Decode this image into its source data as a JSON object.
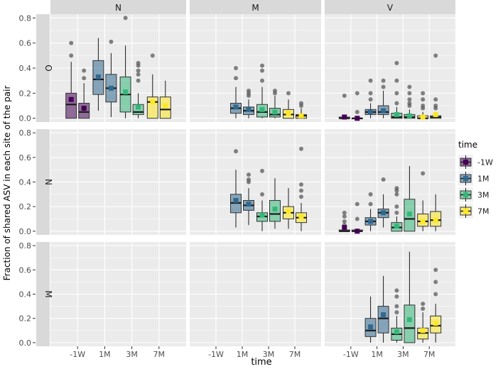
{
  "chart_data": {
    "type": "boxplot-faceted",
    "xlabel": "time",
    "ylabel": "Fraction of shared ASV in each site of the pair",
    "col_facets": [
      "N",
      "M",
      "V"
    ],
    "row_facets": [
      "O",
      "N",
      "M"
    ],
    "categories": [
      "-1W",
      "1M",
      "3M",
      "7M"
    ],
    "yticks": [
      0.0,
      0.2,
      0.4,
      0.6,
      0.8
    ],
    "yticklabels": [
      "0.0",
      "0.2",
      "0.4",
      "0.6",
      "0.8"
    ],
    "ylim": [
      -0.03,
      0.83
    ],
    "legend": {
      "title": "time",
      "position": "right",
      "entries": [
        {
          "label": "-1W",
          "color": "#440154"
        },
        {
          "label": "1M",
          "color": "#31688e"
        },
        {
          "label": "3M",
          "color": "#35b779"
        },
        {
          "label": "7M",
          "color": "#fde725"
        }
      ]
    },
    "panels": [
      {
        "row": "O",
        "col": "N",
        "boxes": [
          {
            "time": "-1W",
            "dodge": -1,
            "q1": 0.0,
            "median": 0.11,
            "q3": 0.2,
            "lo": 0.0,
            "hi": 0.45,
            "mean": 0.15,
            "outliers": [
              0.5,
              0.6
            ]
          },
          {
            "time": "-1W",
            "dodge": 1,
            "q1": 0.0,
            "median": 0.05,
            "q3": 0.12,
            "lo": 0.0,
            "hi": 0.28,
            "mean": 0.08,
            "outliers": [
              0.32,
              0.38
            ]
          },
          {
            "time": "1M",
            "dodge": -1,
            "q1": 0.19,
            "median": 0.31,
            "q3": 0.46,
            "lo": 0.06,
            "hi": 0.64,
            "mean": 0.33,
            "outliers": []
          },
          {
            "time": "1M",
            "dodge": 1,
            "q1": 0.13,
            "median": 0.24,
            "q3": 0.35,
            "lo": 0.01,
            "hi": 0.52,
            "mean": 0.24,
            "outliers": [
              0.61
            ]
          },
          {
            "time": "3M",
            "dodge": -1,
            "q1": 0.05,
            "median": 0.19,
            "q3": 0.33,
            "lo": 0.0,
            "hi": 0.58,
            "mean": 0.21,
            "outliers": [
              0.8
            ]
          },
          {
            "time": "3M",
            "dodge": 1,
            "q1": 0.03,
            "median": 0.05,
            "q3": 0.11,
            "lo": 0.0,
            "hi": 0.2,
            "mean": 0.09,
            "outliers": [
              0.3,
              0.35,
              0.38,
              0.42,
              0.44
            ]
          },
          {
            "time": "7M",
            "dodge": -1,
            "q1": 0.0,
            "median": 0.13,
            "q3": 0.17,
            "lo": 0.0,
            "hi": 0.35,
            "mean": 0.13,
            "outliers": [
              0.5
            ]
          },
          {
            "time": "7M",
            "dodge": 1,
            "q1": 0.0,
            "median": 0.07,
            "q3": 0.17,
            "lo": 0.0,
            "hi": 0.3,
            "mean": 0.1,
            "outliers": []
          }
        ]
      },
      {
        "row": "O",
        "col": "M",
        "boxes": [
          {
            "time": "1M",
            "dodge": -1,
            "q1": 0.04,
            "median": 0.08,
            "q3": 0.12,
            "lo": 0.0,
            "hi": 0.25,
            "mean": 0.09,
            "outliers": [
              0.32,
              0.4
            ]
          },
          {
            "time": "1M",
            "dodge": 1,
            "q1": 0.03,
            "median": 0.06,
            "q3": 0.09,
            "lo": 0.0,
            "hi": 0.15,
            "mean": 0.07,
            "outliers": [
              0.18,
              0.2,
              0.22
            ]
          },
          {
            "time": "3M",
            "dodge": -1,
            "q1": 0.01,
            "median": 0.05,
            "q3": 0.11,
            "lo": 0.0,
            "hi": 0.25,
            "mean": 0.07,
            "outliers": [
              0.3,
              0.38,
              0.42
            ]
          },
          {
            "time": "3M",
            "dodge": 1,
            "q1": 0.01,
            "median": 0.03,
            "q3": 0.08,
            "lo": 0.0,
            "hi": 0.18,
            "mean": 0.05,
            "outliers": [
              0.2,
              0.22
            ]
          },
          {
            "time": "7M",
            "dodge": -1,
            "q1": 0.0,
            "median": 0.03,
            "q3": 0.07,
            "lo": 0.0,
            "hi": 0.15,
            "mean": 0.04,
            "outliers": [
              0.2
            ]
          },
          {
            "time": "7M",
            "dodge": 1,
            "q1": 0.0,
            "median": 0.02,
            "q3": 0.03,
            "lo": 0.0,
            "hi": 0.08,
            "mean": 0.02,
            "outliers": [
              0.1,
              0.12
            ]
          }
        ]
      },
      {
        "row": "O",
        "col": "V",
        "boxes": [
          {
            "time": "-1W",
            "dodge": -1,
            "q1": 0.0,
            "median": 0.0,
            "q3": 0.01,
            "lo": 0.0,
            "hi": 0.02,
            "mean": 0.01,
            "outliers": [
              0.18
            ]
          },
          {
            "time": "-1W",
            "dodge": 1,
            "q1": 0.0,
            "median": 0.0,
            "q3": 0.0,
            "lo": 0.0,
            "hi": 0.01,
            "mean": 0.0,
            "outliers": [
              0.05,
              0.2
            ]
          },
          {
            "time": "1M",
            "dodge": -1,
            "q1": 0.03,
            "median": 0.05,
            "q3": 0.07,
            "lo": 0.0,
            "hi": 0.12,
            "mean": 0.05,
            "outliers": [
              0.15,
              0.2,
              0.3
            ]
          },
          {
            "time": "1M",
            "dodge": 1,
            "q1": 0.03,
            "median": 0.05,
            "q3": 0.1,
            "lo": 0.0,
            "hi": 0.22,
            "mean": 0.06,
            "outliers": [
              0.25,
              0.3
            ]
          },
          {
            "time": "3M",
            "dodge": -1,
            "q1": 0.0,
            "median": 0.01,
            "q3": 0.04,
            "lo": 0.0,
            "hi": 0.09,
            "mean": 0.03,
            "outliers": [
              0.12,
              0.2,
              0.3,
              0.44
            ]
          },
          {
            "time": "3M",
            "dodge": 1,
            "q1": 0.0,
            "median": 0.01,
            "q3": 0.03,
            "lo": 0.0,
            "hi": 0.07,
            "mean": 0.02,
            "outliers": [
              0.1,
              0.12,
              0.15,
              0.2,
              0.25
            ]
          },
          {
            "time": "7M",
            "dodge": -1,
            "q1": 0.0,
            "median": 0.0,
            "q3": 0.02,
            "lo": 0.0,
            "hi": 0.05,
            "mean": 0.01,
            "outliers": [
              0.08,
              0.1,
              0.15,
              0.2
            ]
          },
          {
            "time": "7M",
            "dodge": 1,
            "q1": 0.0,
            "median": 0.01,
            "q3": 0.02,
            "lo": 0.0,
            "hi": 0.05,
            "mean": 0.03,
            "outliers": [
              0.08,
              0.1,
              0.15,
              0.5
            ]
          }
        ]
      },
      {
        "row": "N",
        "col": "M",
        "boxes": [
          {
            "time": "1M",
            "dodge": -1,
            "q1": 0.15,
            "median": 0.23,
            "q3": 0.3,
            "lo": 0.03,
            "hi": 0.5,
            "mean": 0.25,
            "outliers": [
              0.65
            ]
          },
          {
            "time": "1M",
            "dodge": 1,
            "q1": 0.17,
            "median": 0.21,
            "q3": 0.25,
            "lo": 0.05,
            "hi": 0.35,
            "mean": 0.22,
            "outliers": [
              0.4,
              0.42,
              0.46
            ]
          },
          {
            "time": "3M",
            "dodge": -1,
            "q1": 0.08,
            "median": 0.12,
            "q3": 0.15,
            "lo": 0.0,
            "hi": 0.25,
            "mean": 0.13,
            "outliers": [
              0.3,
              0.49
            ]
          },
          {
            "time": "3M",
            "dodge": 1,
            "q1": 0.08,
            "median": 0.14,
            "q3": 0.25,
            "lo": 0.02,
            "hi": 0.43,
            "mean": 0.18,
            "outliers": []
          },
          {
            "time": "7M",
            "dodge": -1,
            "q1": 0.1,
            "median": 0.15,
            "q3": 0.2,
            "lo": 0.02,
            "hi": 0.35,
            "mean": 0.16,
            "outliers": []
          },
          {
            "time": "7M",
            "dodge": 1,
            "q1": 0.07,
            "median": 0.11,
            "q3": 0.15,
            "lo": 0.0,
            "hi": 0.23,
            "mean": 0.12,
            "outliers": [
              0.28,
              0.33,
              0.38,
              0.67
            ]
          }
        ]
      },
      {
        "row": "N",
        "col": "V",
        "boxes": [
          {
            "time": "-1W",
            "dodge": -1,
            "q1": 0.0,
            "median": 0.0,
            "q3": 0.01,
            "lo": 0.0,
            "hi": 0.03,
            "mean": 0.03,
            "outliers": [
              0.05,
              0.08,
              0.12,
              0.15
            ]
          },
          {
            "time": "-1W",
            "dodge": 1,
            "q1": 0.0,
            "median": 0.0,
            "q3": 0.01,
            "lo": 0.0,
            "hi": 0.02,
            "mean": 0.0,
            "outliers": [
              0.1,
              0.22
            ]
          },
          {
            "time": "1M",
            "dodge": -1,
            "q1": 0.05,
            "median": 0.08,
            "q3": 0.11,
            "lo": 0.0,
            "hi": 0.18,
            "mean": 0.08,
            "outliers": [
              0.22,
              0.3
            ]
          },
          {
            "time": "1M",
            "dodge": 1,
            "q1": 0.11,
            "median": 0.15,
            "q3": 0.18,
            "lo": 0.03,
            "hi": 0.3,
            "mean": 0.15,
            "outliers": [
              0.42
            ]
          },
          {
            "time": "3M",
            "dodge": -1,
            "q1": 0.0,
            "median": 0.03,
            "q3": 0.07,
            "lo": 0.0,
            "hi": 0.12,
            "mean": 0.04,
            "outliers": [
              0.15,
              0.2,
              0.3,
              0.33,
              0.35
            ]
          },
          {
            "time": "3M",
            "dodge": 1,
            "q1": 0.0,
            "median": 0.1,
            "q3": 0.26,
            "lo": 0.0,
            "hi": 0.53,
            "mean": 0.14,
            "outliers": []
          },
          {
            "time": "7M",
            "dodge": -1,
            "q1": 0.04,
            "median": 0.08,
            "q3": 0.14,
            "lo": 0.0,
            "hi": 0.25,
            "mean": 0.08,
            "outliers": [
              0.47
            ]
          },
          {
            "time": "7M",
            "dodge": 1,
            "q1": 0.04,
            "median": 0.09,
            "q3": 0.16,
            "lo": 0.0,
            "hi": 0.3,
            "mean": 0.09,
            "outliers": []
          }
        ]
      },
      {
        "row": "M",
        "col": "V",
        "boxes": [
          {
            "time": "1M",
            "dodge": -1,
            "q1": 0.05,
            "median": 0.1,
            "q3": 0.2,
            "lo": 0.0,
            "hi": 0.38,
            "mean": 0.13,
            "outliers": []
          },
          {
            "time": "1M",
            "dodge": 1,
            "q1": 0.08,
            "median": 0.2,
            "q3": 0.3,
            "lo": 0.0,
            "hi": 0.55,
            "mean": 0.23,
            "outliers": []
          },
          {
            "time": "3M",
            "dodge": -1,
            "q1": 0.02,
            "median": 0.07,
            "q3": 0.12,
            "lo": 0.0,
            "hi": 0.22,
            "mean": 0.09,
            "outliers": [
              0.25,
              0.3,
              0.38,
              0.43
            ]
          },
          {
            "time": "3M",
            "dodge": 1,
            "q1": 0.0,
            "median": 0.12,
            "q3": 0.31,
            "lo": 0.0,
            "hi": 0.75,
            "mean": 0.19,
            "outliers": []
          },
          {
            "time": "7M",
            "dodge": -1,
            "q1": 0.03,
            "median": 0.08,
            "q3": 0.12,
            "lo": 0.0,
            "hi": 0.25,
            "mean": 0.1,
            "outliers": [
              0.28,
              0.32
            ]
          },
          {
            "time": "7M",
            "dodge": 1,
            "q1": 0.08,
            "median": 0.14,
            "q3": 0.22,
            "lo": 0.0,
            "hi": 0.32,
            "mean": 0.16,
            "outliers": [
              0.4,
              0.5,
              0.6
            ]
          }
        ]
      }
    ]
  }
}
